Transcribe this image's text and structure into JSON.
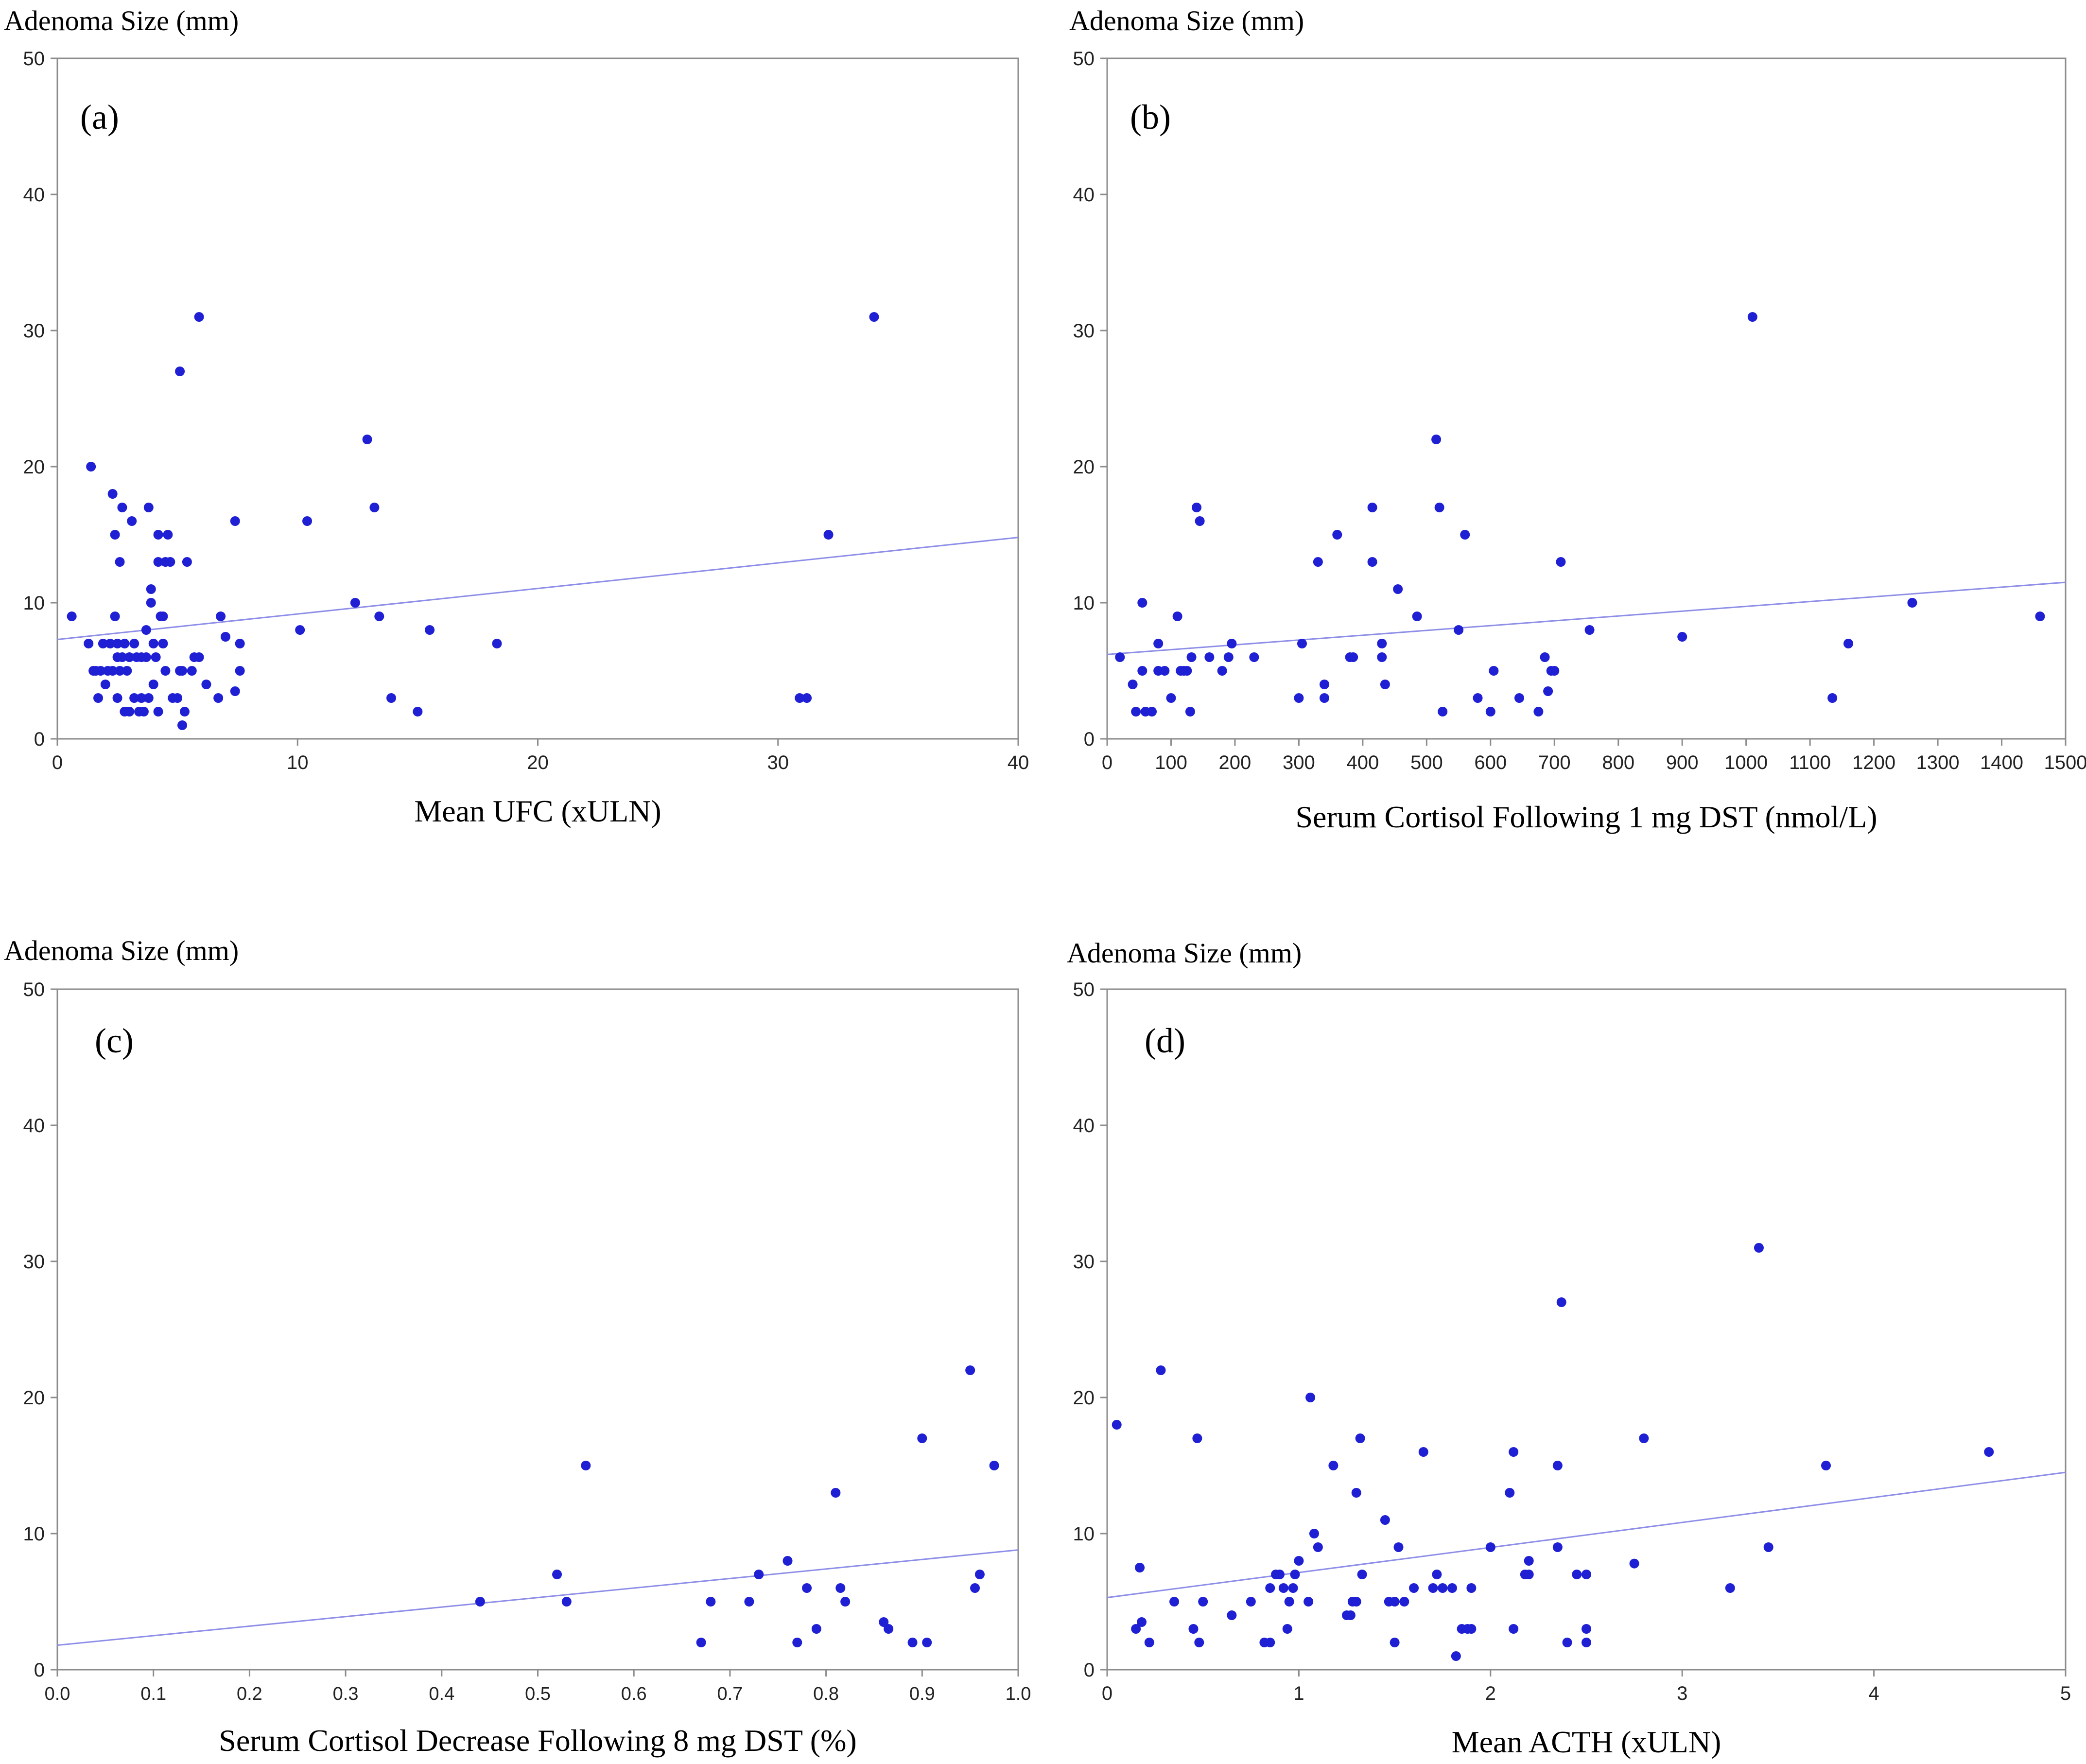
{
  "chart_data": [
    {
      "type": "scatter",
      "panel_label": "(a)",
      "ylabel": "Adenoma Size (mm)",
      "xlabel": "Mean UFC (xULN)",
      "xlim": [
        0,
        40
      ],
      "ylim": [
        0,
        50
      ],
      "xticks": [
        0,
        10,
        20,
        30,
        40
      ],
      "yticks": [
        0,
        10,
        20,
        30,
        40,
        50
      ],
      "x_tick_labels": [
        "0",
        "10",
        "20",
        "30",
        "40"
      ],
      "y_tick_labels": [
        "0",
        "10",
        "20",
        "30",
        "40",
        "50"
      ],
      "trend_line": {
        "x": [
          0,
          40
        ],
        "y": [
          7.3,
          14.8
        ]
      },
      "points": [
        [
          0.6,
          9
        ],
        [
          1.3,
          7
        ],
        [
          1.4,
          20
        ],
        [
          1.5,
          5
        ],
        [
          1.6,
          5
        ],
        [
          1.7,
          3
        ],
        [
          1.8,
          5
        ],
        [
          1.9,
          7
        ],
        [
          2.0,
          4
        ],
        [
          2.1,
          5
        ],
        [
          2.2,
          7
        ],
        [
          2.3,
          5
        ],
        [
          2.3,
          18
        ],
        [
          2.4,
          15
        ],
        [
          2.4,
          9
        ],
        [
          2.5,
          7
        ],
        [
          2.5,
          6
        ],
        [
          2.5,
          3
        ],
        [
          2.6,
          5
        ],
        [
          2.6,
          13
        ],
        [
          2.7,
          17
        ],
        [
          2.7,
          6
        ],
        [
          2.8,
          2
        ],
        [
          2.8,
          7
        ],
        [
          2.9,
          5
        ],
        [
          3.0,
          2
        ],
        [
          3.0,
          6
        ],
        [
          3.1,
          16
        ],
        [
          3.2,
          7
        ],
        [
          3.2,
          3
        ],
        [
          3.3,
          6
        ],
        [
          3.4,
          2
        ],
        [
          3.5,
          6
        ],
        [
          3.5,
          3
        ],
        [
          3.6,
          2
        ],
        [
          3.7,
          6
        ],
        [
          3.7,
          8
        ],
        [
          3.8,
          17
        ],
        [
          3.8,
          3
        ],
        [
          3.9,
          10
        ],
        [
          3.9,
          11
        ],
        [
          4.0,
          4
        ],
        [
          4.0,
          7
        ],
        [
          4.1,
          6
        ],
        [
          4.2,
          15
        ],
        [
          4.2,
          13
        ],
        [
          4.2,
          2
        ],
        [
          4.3,
          9
        ],
        [
          4.4,
          7
        ],
        [
          4.4,
          9
        ],
        [
          4.5,
          13
        ],
        [
          4.5,
          5
        ],
        [
          4.6,
          15
        ],
        [
          4.7,
          13
        ],
        [
          4.8,
          3
        ],
        [
          5.0,
          3
        ],
        [
          5.1,
          5
        ],
        [
          5.1,
          27
        ],
        [
          5.2,
          1
        ],
        [
          5.2,
          5
        ],
        [
          5.3,
          2
        ],
        [
          5.4,
          13
        ],
        [
          5.6,
          5
        ],
        [
          5.7,
          6
        ],
        [
          5.9,
          31
        ],
        [
          5.9,
          6
        ],
        [
          6.2,
          4
        ],
        [
          6.7,
          3
        ],
        [
          6.8,
          9
        ],
        [
          7.0,
          7.5
        ],
        [
          7.4,
          3.5
        ],
        [
          7.4,
          16
        ],
        [
          7.6,
          5
        ],
        [
          7.6,
          7
        ],
        [
          10.1,
          8
        ],
        [
          10.4,
          16
        ],
        [
          12.4,
          10
        ],
        [
          12.9,
          22
        ],
        [
          13.2,
          17
        ],
        [
          13.4,
          9
        ],
        [
          13.9,
          3
        ],
        [
          15.0,
          2
        ],
        [
          15.5,
          8
        ],
        [
          18.3,
          7
        ],
        [
          30.9,
          3
        ],
        [
          31.2,
          3
        ],
        [
          32.1,
          15
        ],
        [
          34.0,
          31
        ]
      ]
    },
    {
      "type": "scatter",
      "panel_label": "(b)",
      "ylabel": "Adenoma Size (mm)",
      "xlabel": "Serum Cortisol Following 1 mg DST (nmol/L)",
      "xlim": [
        0,
        1500
      ],
      "ylim": [
        0,
        50
      ],
      "xticks": [
        0,
        100,
        200,
        300,
        400,
        500,
        600,
        700,
        800,
        900,
        1000,
        1100,
        1200,
        1300,
        1400,
        1500
      ],
      "yticks": [
        0,
        10,
        20,
        30,
        40,
        50
      ],
      "x_tick_labels": [
        "0",
        "100",
        "200",
        "300",
        "400",
        "500",
        "600",
        "700",
        "800",
        "900",
        "1000",
        "1100",
        "1200",
        "1300",
        "1400",
        "1500"
      ],
      "y_tick_labels": [
        "0",
        "10",
        "20",
        "30",
        "40",
        "50"
      ],
      "trend_line": {
        "x": [
          0,
          1500
        ],
        "y": [
          6.2,
          11.5
        ]
      },
      "points": [
        [
          20,
          6
        ],
        [
          40,
          4
        ],
        [
          45,
          2
        ],
        [
          55,
          10
        ],
        [
          55,
          5
        ],
        [
          60,
          2
        ],
        [
          70,
          2
        ],
        [
          80,
          7
        ],
        [
          80,
          5
        ],
        [
          90,
          5
        ],
        [
          100,
          3
        ],
        [
          110,
          9
        ],
        [
          115,
          5
        ],
        [
          120,
          5
        ],
        [
          125,
          5
        ],
        [
          130,
          2
        ],
        [
          132,
          6
        ],
        [
          140,
          17
        ],
        [
          145,
          16
        ],
        [
          160,
          6
        ],
        [
          180,
          5
        ],
        [
          190,
          6
        ],
        [
          195,
          7
        ],
        [
          230,
          6
        ],
        [
          300,
          3
        ],
        [
          305,
          7
        ],
        [
          330,
          13
        ],
        [
          340,
          4
        ],
        [
          340,
          3
        ],
        [
          360,
          15
        ],
        [
          380,
          6
        ],
        [
          385,
          6
        ],
        [
          415,
          17
        ],
        [
          415,
          13
        ],
        [
          430,
          7
        ],
        [
          430,
          6
        ],
        [
          435,
          4
        ],
        [
          455,
          11
        ],
        [
          485,
          9
        ],
        [
          515,
          22
        ],
        [
          520,
          17
        ],
        [
          525,
          2
        ],
        [
          550,
          8
        ],
        [
          560,
          15
        ],
        [
          580,
          3
        ],
        [
          600,
          2
        ],
        [
          605,
          5
        ],
        [
          645,
          3
        ],
        [
          675,
          2
        ],
        [
          685,
          6
        ],
        [
          690,
          3.5
        ],
        [
          695,
          5
        ],
        [
          700,
          5
        ],
        [
          710,
          13
        ],
        [
          755,
          8
        ],
        [
          900,
          7.5
        ],
        [
          1010,
          31
        ],
        [
          1135,
          3
        ],
        [
          1160,
          7
        ],
        [
          1260,
          10
        ],
        [
          1460,
          9
        ]
      ]
    },
    {
      "type": "scatter",
      "panel_label": "(c)",
      "ylabel": "Adenoma Size (mm)",
      "xlabel": "Serum Cortisol Decrease Following 8 mg DST (%)",
      "xlim": [
        0,
        1.0
      ],
      "ylim": [
        0,
        50
      ],
      "xticks": [
        0,
        0.1,
        0.2,
        0.3,
        0.4,
        0.5,
        0.6,
        0.7,
        0.8,
        0.9,
        1.0
      ],
      "yticks": [
        0,
        10,
        20,
        30,
        40,
        50
      ],
      "x_tick_labels": [
        "0.0",
        "0.1",
        "0.2",
        "0.3",
        "0.4",
        "0.5",
        "0.6",
        "0.7",
        "0.8",
        "0.9",
        "1.0"
      ],
      "y_tick_labels": [
        "0",
        "10",
        "20",
        "30",
        "40",
        "50"
      ],
      "trend_line": {
        "x": [
          0,
          1.0
        ],
        "y": [
          1.8,
          8.8
        ]
      },
      "points": [
        [
          0.44,
          5
        ],
        [
          0.52,
          7
        ],
        [
          0.53,
          5
        ],
        [
          0.55,
          15
        ],
        [
          0.67,
          2
        ],
        [
          0.68,
          5
        ],
        [
          0.72,
          5
        ],
        [
          0.73,
          7
        ],
        [
          0.76,
          8
        ],
        [
          0.77,
          2
        ],
        [
          0.78,
          6
        ],
        [
          0.79,
          3
        ],
        [
          0.81,
          13
        ],
        [
          0.815,
          6
        ],
        [
          0.82,
          5
        ],
        [
          0.86,
          3.5
        ],
        [
          0.865,
          3
        ],
        [
          0.89,
          2
        ],
        [
          0.9,
          17
        ],
        [
          0.905,
          2
        ],
        [
          0.95,
          22
        ],
        [
          0.955,
          6
        ],
        [
          0.96,
          7
        ],
        [
          0.975,
          15
        ]
      ]
    },
    {
      "type": "scatter",
      "panel_label": "(d)",
      "ylabel": "Adenoma Size (mm)",
      "xlabel": "Mean ACTH (xULN)",
      "xlim": [
        0,
        5
      ],
      "ylim": [
        0,
        50
      ],
      "xticks": [
        0,
        1,
        2,
        3,
        4,
        5
      ],
      "yticks": [
        0,
        10,
        20,
        30,
        40,
        50
      ],
      "x_tick_labels": [
        "0",
        "1",
        "2",
        "3",
        "4",
        "5"
      ],
      "y_tick_labels": [
        "0",
        "10",
        "20",
        "30",
        "40",
        "50"
      ],
      "trend_line": {
        "x": [
          0,
          5
        ],
        "y": [
          5.3,
          14.5
        ]
      },
      "points": [
        [
          0.05,
          18
        ],
        [
          0.15,
          3
        ],
        [
          0.17,
          7.5
        ],
        [
          0.18,
          3.5
        ],
        [
          0.22,
          2
        ],
        [
          0.28,
          22
        ],
        [
          0.35,
          5
        ],
        [
          0.45,
          3
        ],
        [
          0.47,
          17
        ],
        [
          0.48,
          2
        ],
        [
          0.5,
          5
        ],
        [
          0.65,
          4
        ],
        [
          0.75,
          5
        ],
        [
          0.82,
          2
        ],
        [
          0.85,
          2
        ],
        [
          0.85,
          6
        ],
        [
          0.88,
          7
        ],
        [
          0.9,
          7
        ],
        [
          0.92,
          6
        ],
        [
          0.94,
          3
        ],
        [
          0.95,
          5
        ],
        [
          0.97,
          6
        ],
        [
          0.98,
          7
        ],
        [
          1.0,
          8
        ],
        [
          1.05,
          5
        ],
        [
          1.06,
          20
        ],
        [
          1.08,
          10
        ],
        [
          1.1,
          9
        ],
        [
          1.18,
          15
        ],
        [
          1.25,
          4
        ],
        [
          1.27,
          4
        ],
        [
          1.28,
          5
        ],
        [
          1.3,
          13
        ],
        [
          1.3,
          5
        ],
        [
          1.32,
          17
        ],
        [
          1.33,
          7
        ],
        [
          1.45,
          11
        ],
        [
          1.47,
          5
        ],
        [
          1.5,
          2
        ],
        [
          1.5,
          5
        ],
        [
          1.52,
          9
        ],
        [
          1.55,
          5
        ],
        [
          1.6,
          6
        ],
        [
          1.65,
          16
        ],
        [
          1.7,
          6
        ],
        [
          1.72,
          7
        ],
        [
          1.75,
          6
        ],
        [
          1.8,
          6
        ],
        [
          1.82,
          1
        ],
        [
          1.85,
          3
        ],
        [
          1.88,
          3
        ],
        [
          1.9,
          3
        ],
        [
          1.9,
          6
        ],
        [
          2.0,
          9
        ],
        [
          2.1,
          13
        ],
        [
          2.12,
          3
        ],
        [
          2.12,
          16
        ],
        [
          2.18,
          7
        ],
        [
          2.2,
          8
        ],
        [
          2.2,
          7
        ],
        [
          2.35,
          15
        ],
        [
          2.35,
          9
        ],
        [
          2.37,
          27
        ],
        [
          2.4,
          2
        ],
        [
          2.45,
          7
        ],
        [
          2.5,
          7
        ],
        [
          2.5,
          3
        ],
        [
          2.5,
          2
        ],
        [
          2.75,
          7.8
        ],
        [
          2.8,
          17
        ],
        [
          3.25,
          6
        ],
        [
          3.4,
          31
        ],
        [
          3.45,
          9
        ],
        [
          3.75,
          15
        ],
        [
          4.6,
          16
        ]
      ]
    }
  ]
}
